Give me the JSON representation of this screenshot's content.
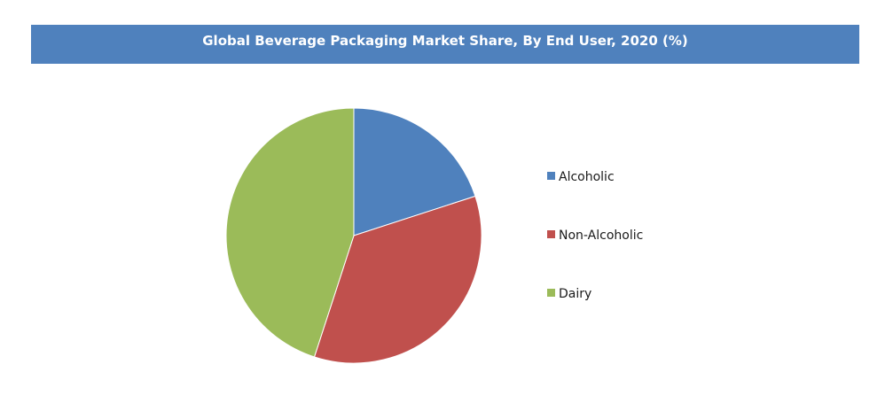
{
  "chart_data": {
    "type": "pie",
    "title": "Global Beverage Packaging Market Share, By End User, 2020 (%)",
    "categories": [
      "Alcoholic",
      "Non-Alcoholic",
      "Dairy"
    ],
    "values": [
      20,
      35,
      45
    ],
    "colors": [
      "#4f81bd",
      "#c0504d",
      "#9bbb59"
    ],
    "start_angle_deg": 0,
    "direction": "clockwise",
    "legend_position": "right",
    "data_labels": false
  }
}
